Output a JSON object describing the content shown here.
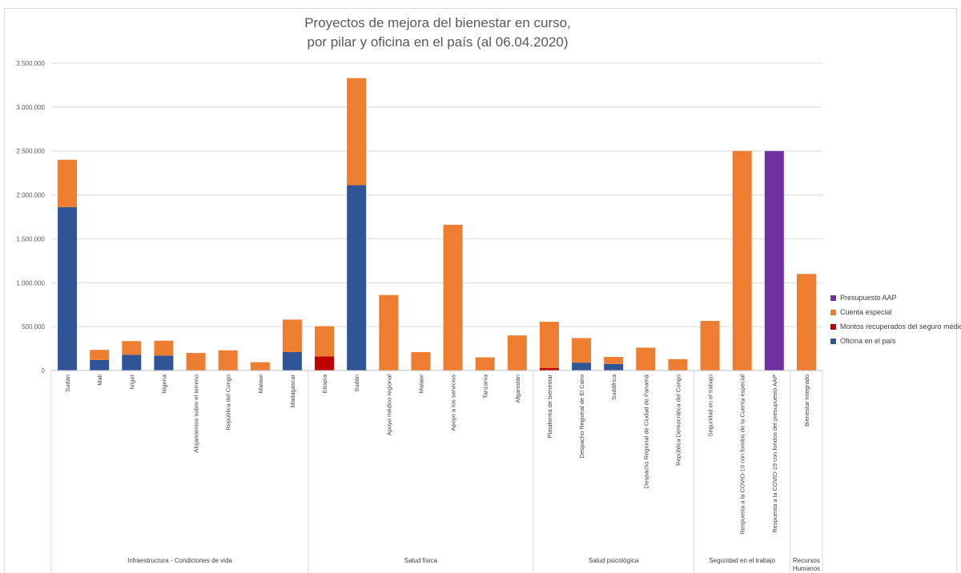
{
  "chart_data": {
    "type": "bar",
    "stacked": true,
    "title_line1": "Proyectos de mejora del bienestar en curso,",
    "title_line2": "por pilar y oficina en el país (al 06.04.2020)",
    "xlabel": "",
    "ylabel": "",
    "ylim": [
      0,
      3500000
    ],
    "yticks": [
      "0",
      "500.000",
      "1.000.000",
      "1.500.000",
      "2.000.000",
      "2.500.000",
      "3.000.000",
      "3.500.000"
    ],
    "grid": true,
    "legend_position": "right",
    "categories": [
      "Sudán",
      "Mali",
      "Níger",
      "Nigeria",
      "Alojamientos sobre el terreno",
      "República del Congo",
      "Malawi",
      "Madagascar",
      "Etiopía",
      "Sudán",
      "Apoyo médico regional",
      "Malawi",
      "Apoyo a los servicios",
      "Tanzania",
      "Afganistán",
      "Plataforma de bienestar",
      "Despacho Regional de El Cairo",
      "Sudáfrica",
      "Despacho Regional de Ciudad de Panamá",
      "República Democrática del Congo",
      "Seguridad en el trabajo",
      "Respuesta a la COVID-19 con fondos de la Cuenta especial",
      "Respuesta a la COVID-19 con fondos del presupuesto AAP",
      "Bienestar integrado"
    ],
    "groups": [
      {
        "label": "Infraestructura - Condiciones de vida",
        "count": 8
      },
      {
        "label": "Salud física",
        "count": 7
      },
      {
        "label": "Salud psicológica",
        "count": 5
      },
      {
        "label": "Seguridad en el trabajo",
        "count": 3
      },
      {
        "label": "Recursos Humanos",
        "count": 1
      }
    ],
    "series": [
      {
        "name": "Oficina en el país",
        "color": "#2f5597",
        "values": [
          1860000,
          120000,
          180000,
          170000,
          0,
          0,
          0,
          210000,
          0,
          2110000,
          0,
          0,
          0,
          0,
          0,
          0,
          90000,
          75000,
          0,
          0,
          0,
          0,
          0,
          0
        ]
      },
      {
        "name": "Montos recuperados del seguro médico",
        "color": "#c00000",
        "values": [
          0,
          0,
          0,
          0,
          0,
          0,
          0,
          0,
          160000,
          0,
          0,
          0,
          0,
          0,
          0,
          30000,
          0,
          0,
          0,
          0,
          0,
          0,
          0,
          0
        ]
      },
      {
        "name": "Cuenta especial",
        "color": "#ed7d31",
        "values": [
          540000,
          115000,
          155000,
          170000,
          200000,
          230000,
          95000,
          370000,
          345000,
          1220000,
          860000,
          210000,
          1660000,
          150000,
          400000,
          525000,
          280000,
          80000,
          260000,
          130000,
          565000,
          2500000,
          0,
          1100000
        ]
      },
      {
        "name": "Presupuesto AAP",
        "color": "#7030a0",
        "values": [
          0,
          0,
          0,
          0,
          0,
          0,
          0,
          0,
          0,
          0,
          0,
          0,
          0,
          0,
          0,
          0,
          0,
          0,
          0,
          0,
          0,
          0,
          2500000,
          0
        ]
      }
    ],
    "legend_order": [
      "Presupuesto AAP",
      "Cuenta especial",
      "Montos recuperados del seguro médico",
      "Oficina en el país"
    ]
  }
}
